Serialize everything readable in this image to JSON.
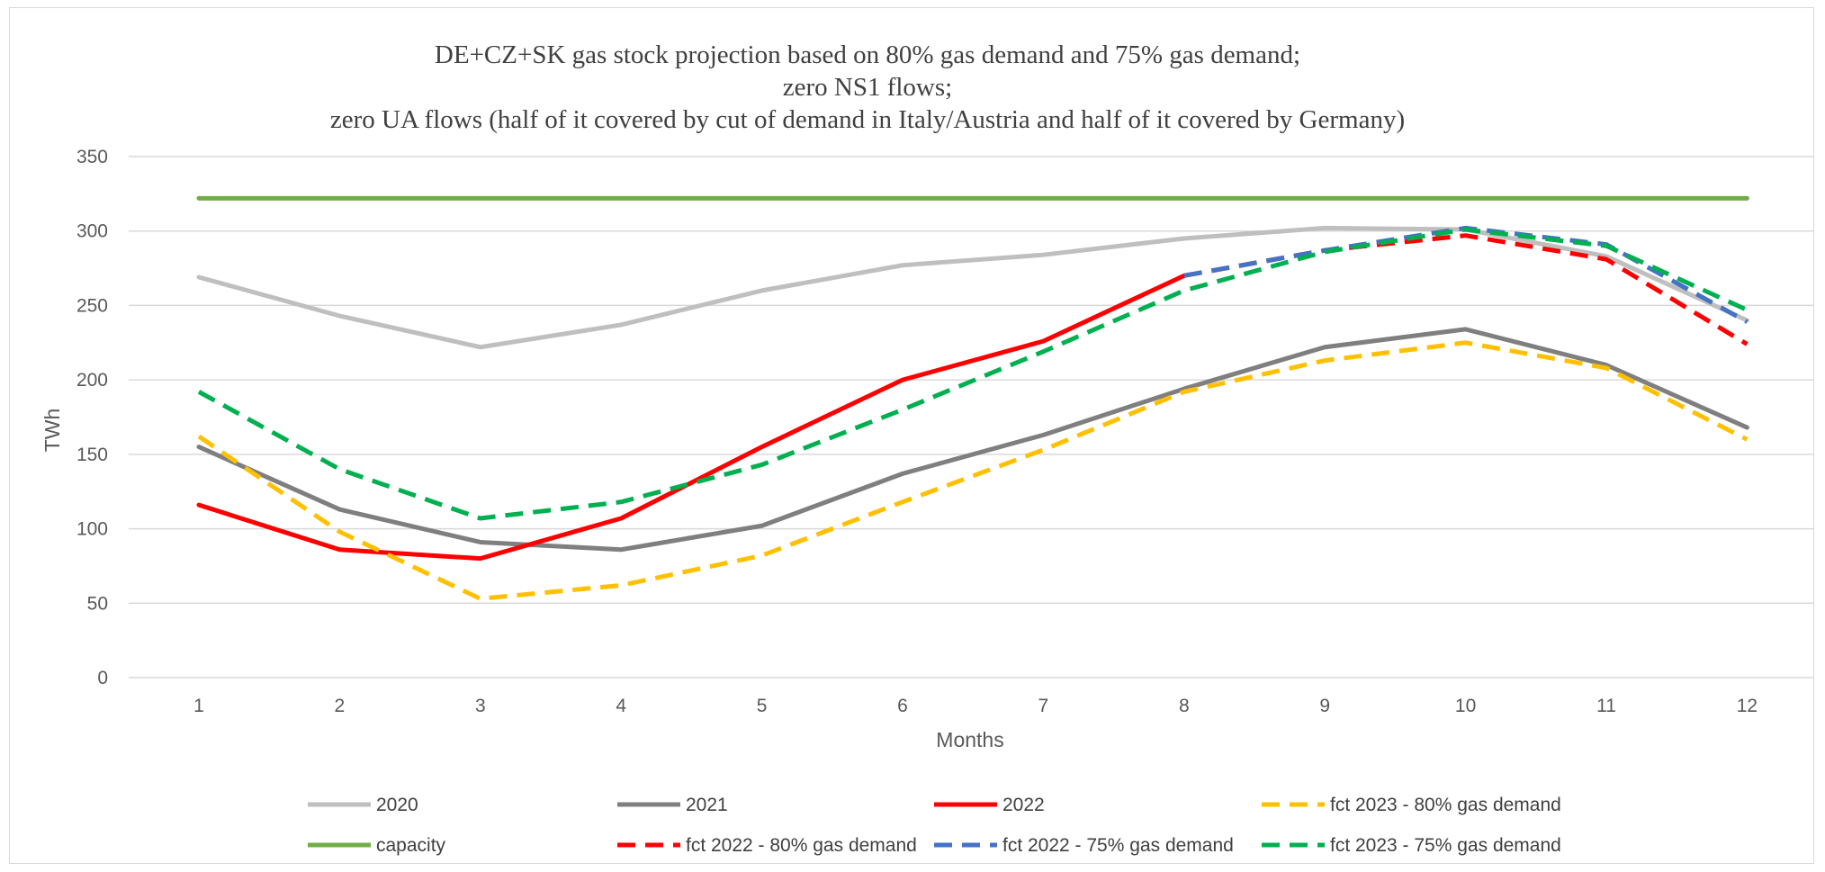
{
  "chart_data": {
    "type": "line",
    "title_lines": [
      "DE+CZ+SK gas stock projection based on 80% gas demand and 75% gas demand;",
      "zero NS1 flows;",
      "zero UA flows (half of it covered by cut of demand in Italy/Austria and half of it covered by Germany)"
    ],
    "xlabel": "Months",
    "ylabel": "TWh",
    "x": [
      1,
      2,
      3,
      4,
      5,
      6,
      7,
      8,
      9,
      10,
      11,
      12
    ],
    "ylim": [
      0,
      350
    ],
    "yticks": [
      0,
      50,
      100,
      150,
      200,
      250,
      300,
      350
    ],
    "grid": "horizontal",
    "legend_position": "bottom",
    "series": [
      {
        "name": "2020",
        "color": "#bfbfbf",
        "dash": "solid",
        "x": [
          1,
          2,
          3,
          4,
          5,
          6,
          7,
          8,
          9,
          10,
          11,
          12
        ],
        "values": [
          269,
          243,
          222,
          237,
          260,
          277,
          284,
          295,
          302,
          301,
          283,
          240
        ]
      },
      {
        "name": "2021",
        "color": "#7f7f7f",
        "dash": "solid",
        "x": [
          1,
          2,
          3,
          4,
          5,
          6,
          7,
          8,
          9,
          10,
          11,
          12
        ],
        "values": [
          155,
          113,
          91,
          86,
          102,
          137,
          163,
          194,
          222,
          234,
          210,
          168
        ]
      },
      {
        "name": "2022",
        "color": "#ff0000",
        "dash": "solid",
        "x": [
          1,
          2,
          3,
          4,
          5,
          6,
          7,
          8
        ],
        "values": [
          116,
          86,
          80,
          107,
          155,
          200,
          226,
          270
        ]
      },
      {
        "name": "fct 2023 - 80% gas demand",
        "color": "#ffc000",
        "dash": "dashed",
        "x": [
          1,
          2,
          3,
          4,
          5,
          6,
          7,
          8,
          9,
          10,
          11,
          12
        ],
        "values": [
          162,
          98,
          53,
          62,
          82,
          118,
          153,
          192,
          213,
          225,
          208,
          160
        ]
      },
      {
        "name": "capacity",
        "color": "#70ad47",
        "dash": "solid",
        "x": [
          1,
          2,
          3,
          4,
          5,
          6,
          7,
          8,
          9,
          10,
          11,
          12
        ],
        "values": [
          322,
          322,
          322,
          322,
          322,
          322,
          322,
          322,
          322,
          322,
          322,
          322
        ]
      },
      {
        "name": "fct 2022 - 80% gas demand",
        "color": "#ff0000",
        "dash": "dashed",
        "x": [
          8,
          9,
          10,
          11,
          12
        ],
        "values": [
          270,
          287,
          297,
          281,
          224
        ]
      },
      {
        "name": "fct 2022 - 75% gas demand",
        "color": "#4472c4",
        "dash": "dashed",
        "x": [
          8,
          9,
          10,
          11,
          12
        ],
        "values": [
          270,
          287,
          302,
          291,
          239
        ]
      },
      {
        "name": "fct 2023 - 75% gas demand",
        "color": "#00b050",
        "dash": "dashed",
        "x": [
          1,
          2,
          3,
          4,
          5,
          6,
          7,
          8,
          9,
          10,
          11,
          12
        ],
        "values": [
          192,
          140,
          107,
          118,
          143,
          180,
          219,
          260,
          286,
          301,
          290,
          247
        ]
      }
    ]
  }
}
